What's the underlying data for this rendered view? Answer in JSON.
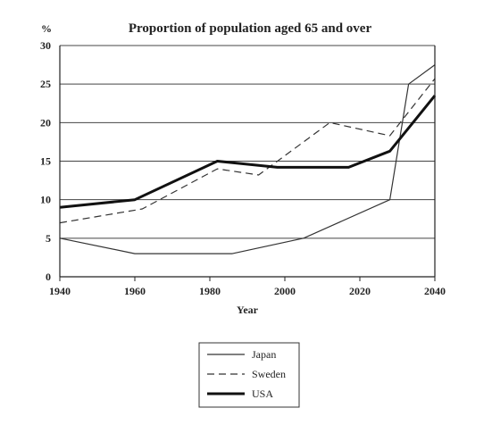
{
  "chart_data": {
    "type": "line",
    "title": "Proportion of population aged 65 and over",
    "ylabel": "%",
    "xlabel": "Year",
    "xlim": [
      1940,
      2040
    ],
    "ylim": [
      0,
      30
    ],
    "xticks": [
      "1940",
      "1960",
      "1980",
      "2000",
      "2020",
      "2040"
    ],
    "yticks": [
      "0",
      "5",
      "10",
      "15",
      "20",
      "25",
      "30"
    ],
    "grid": "horizontal",
    "legend_position": "bottom-center",
    "series": [
      {
        "name": "Japan",
        "style": "thin-solid",
        "color": "#333333",
        "points": [
          [
            1940,
            5
          ],
          [
            1960,
            3
          ],
          [
            1986,
            3
          ],
          [
            2005,
            5
          ],
          [
            2028,
            10
          ],
          [
            2033,
            25
          ],
          [
            2040,
            27.5
          ]
        ]
      },
      {
        "name": "Sweden",
        "style": "dashed",
        "color": "#333333",
        "points": [
          [
            1940,
            7
          ],
          [
            1962,
            8.8
          ],
          [
            1982,
            14
          ],
          [
            1993,
            13.2
          ],
          [
            2012,
            20
          ],
          [
            2028,
            18.3
          ],
          [
            2040,
            25.7
          ]
        ]
      },
      {
        "name": "USA",
        "style": "thick-solid",
        "color": "#111111",
        "points": [
          [
            1940,
            9
          ],
          [
            1960,
            10
          ],
          [
            1982,
            15
          ],
          [
            1998,
            14.2
          ],
          [
            2017,
            14.2
          ],
          [
            2028,
            16.3
          ],
          [
            2040,
            23.5
          ]
        ]
      }
    ]
  }
}
